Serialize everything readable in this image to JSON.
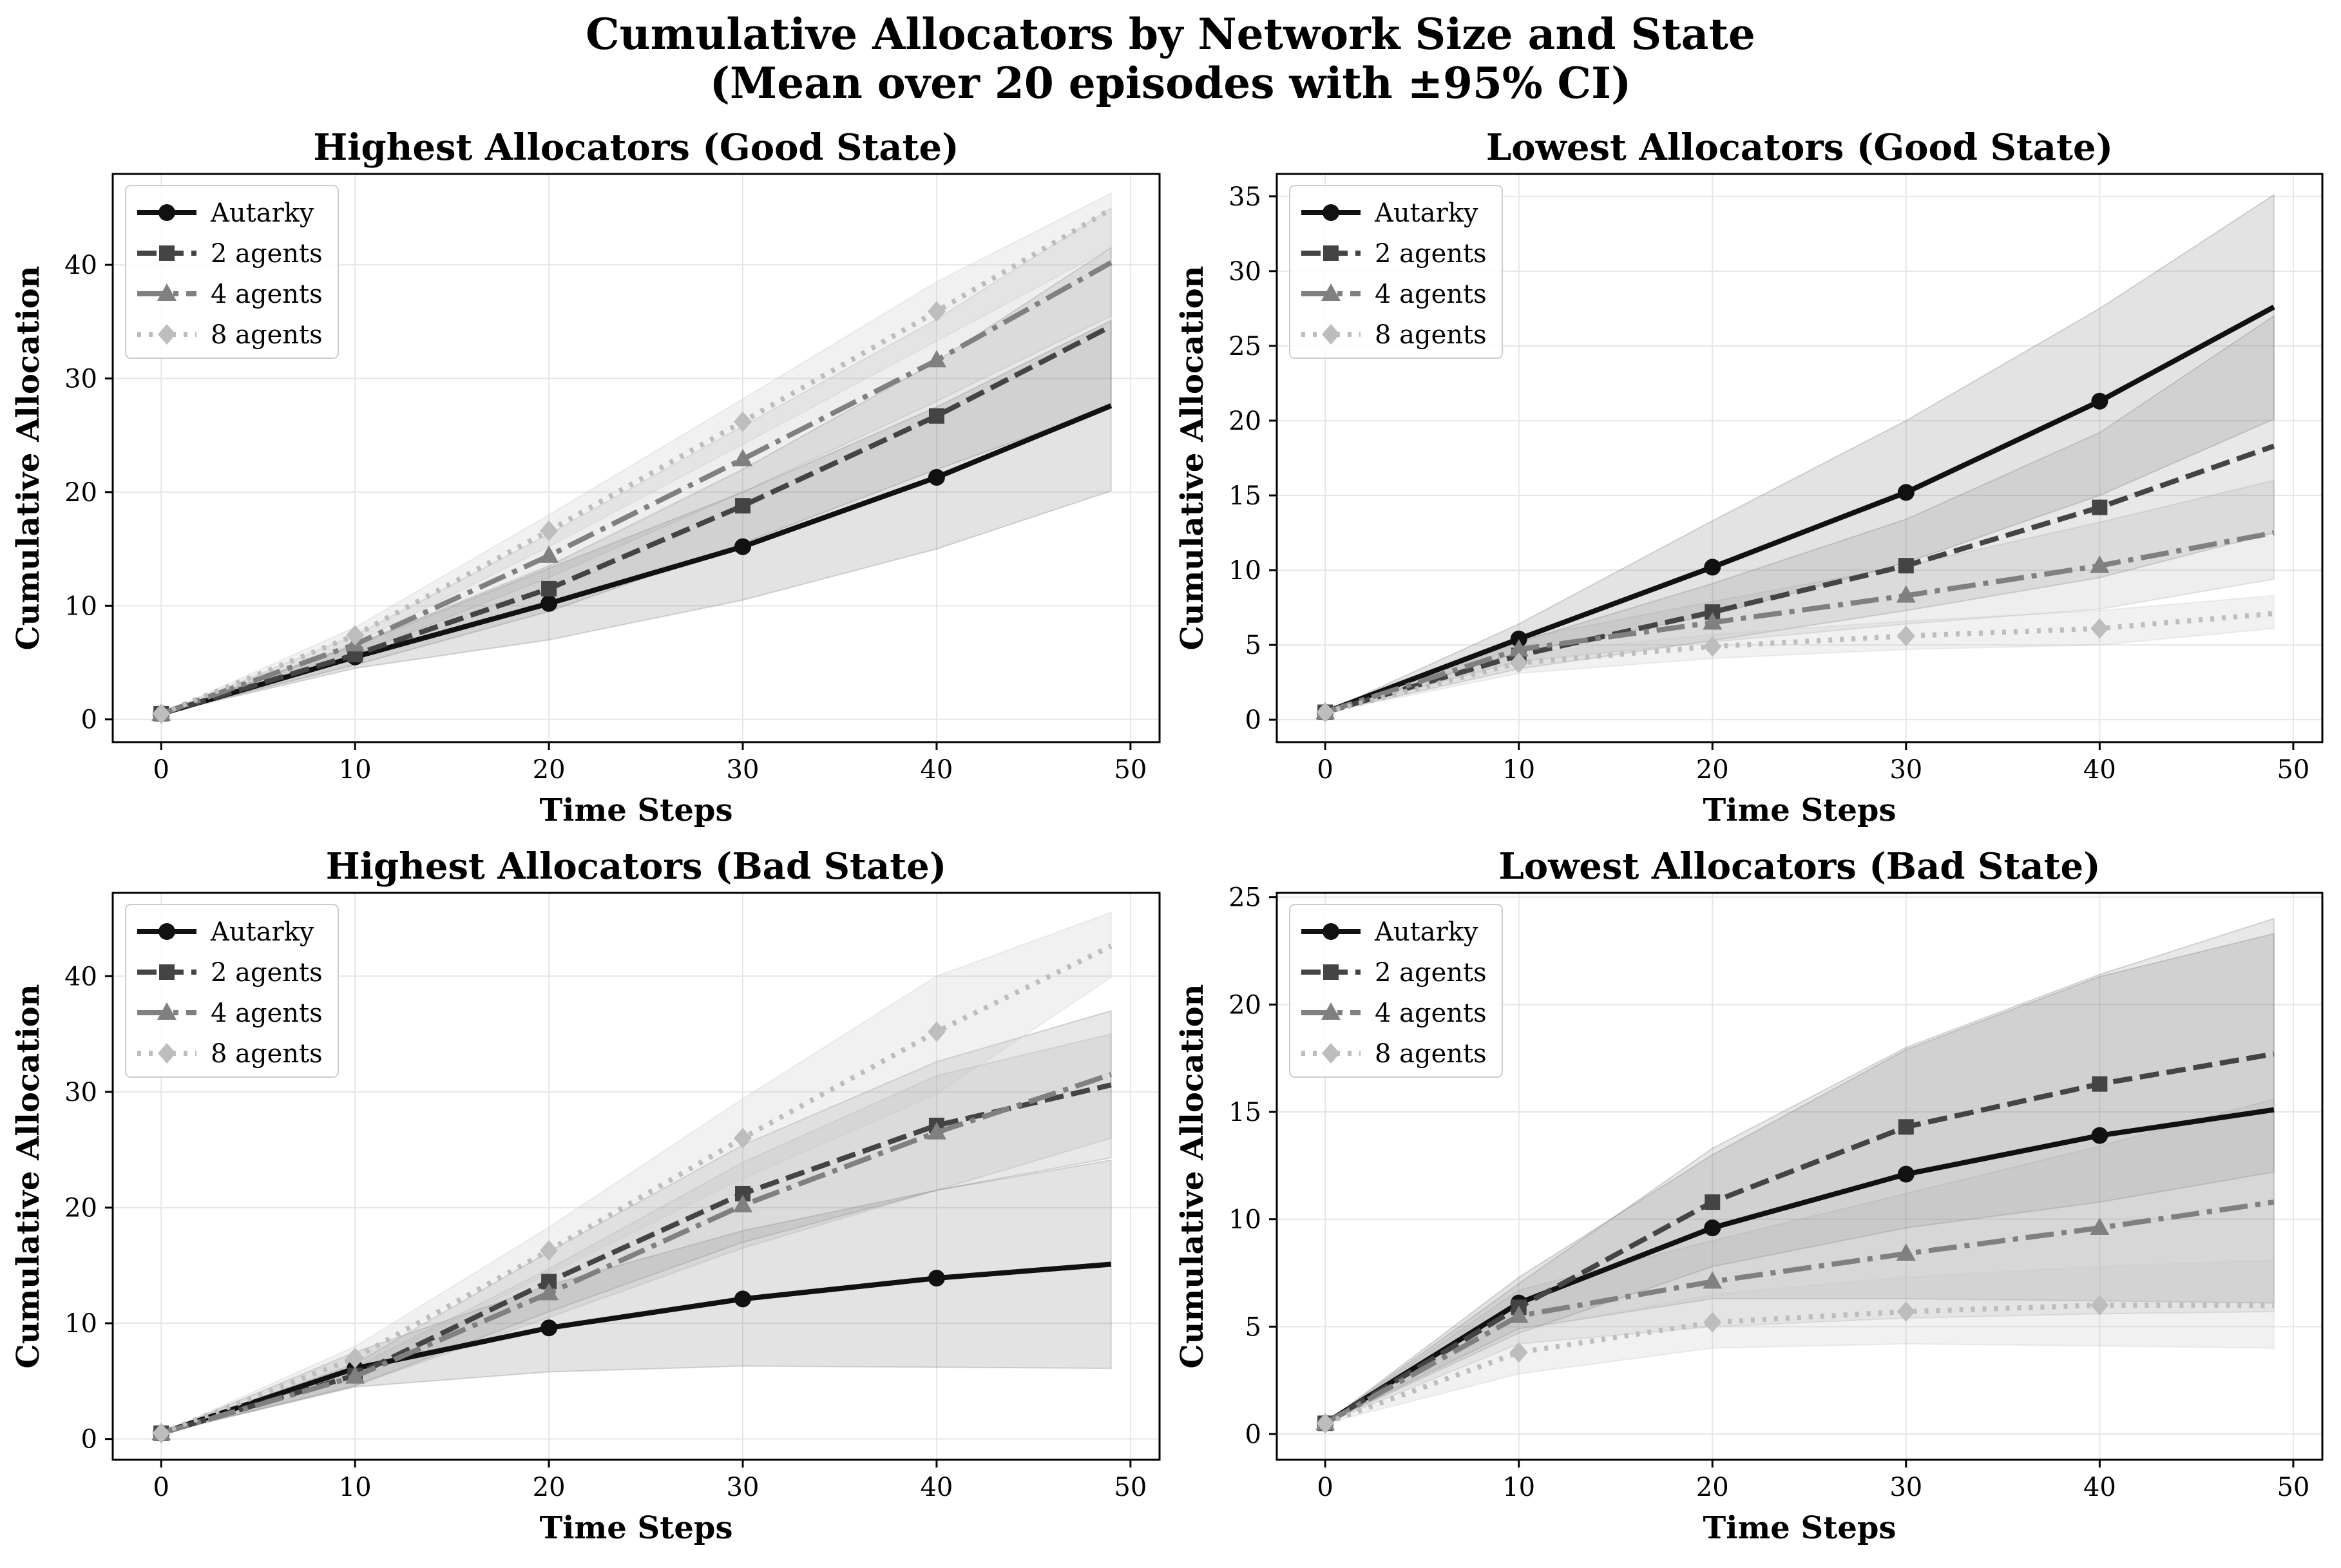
{
  "figure": {
    "title_line1": "Cumulative Allocators by Network Size and State",
    "title_line2": "(Mean over 20 episodes with ±95% CI)"
  },
  "chart_data": [
    {
      "type": "line",
      "title": "Highest Allocators (Good State)",
      "xlabel": "Time Steps",
      "ylabel": "Cumulative Allocation",
      "xlim": [
        -2.5,
        51.5
      ],
      "ylim": [
        -2,
        48
      ],
      "xticks": [
        0,
        10,
        20,
        30,
        40,
        50
      ],
      "yticks": [
        0,
        10,
        20,
        30,
        40
      ],
      "grid": true,
      "legend_position": "upper-left",
      "series": [
        {
          "name": "Autarky",
          "style": "solid",
          "marker": "circle",
          "color": "#111111",
          "x": [
            0,
            10,
            20,
            30,
            40,
            49
          ],
          "y": [
            0.5,
            5.5,
            10.2,
            15.2,
            21.3,
            27.6
          ],
          "ci_low": [
            0.5,
            4.5,
            7.0,
            10.5,
            15.0,
            20.1
          ],
          "ci_high": [
            0.5,
            6.5,
            13.3,
            20.0,
            27.5,
            35.1
          ]
        },
        {
          "name": "2 agents",
          "style": "dashed",
          "marker": "square",
          "color": "#444444",
          "x": [
            0,
            10,
            20,
            30,
            40,
            49
          ],
          "y": [
            0.5,
            5.7,
            11.5,
            18.8,
            26.7,
            34.6
          ],
          "ci_low": [
            0.5,
            4.8,
            9.5,
            15.5,
            22.0,
            27.5
          ],
          "ci_high": [
            0.5,
            6.6,
            13.5,
            22.0,
            31.5,
            41.5
          ]
        },
        {
          "name": "4 agents",
          "style": "dashdot",
          "marker": "triangle",
          "color": "#808080",
          "x": [
            0,
            10,
            20,
            30,
            40,
            49
          ],
          "y": [
            0.5,
            6.6,
            14.4,
            22.9,
            31.6,
            40.2
          ],
          "ci_low": [
            0.5,
            5.7,
            12.5,
            20.0,
            28.0,
            35.5
          ],
          "ci_high": [
            0.5,
            7.4,
            16.3,
            25.8,
            35.2,
            45.0
          ]
        },
        {
          "name": "8 agents",
          "style": "dotted",
          "marker": "diamond",
          "color": "#bdbdbd",
          "x": [
            0,
            10,
            20,
            30,
            40,
            49
          ],
          "y": [
            0.5,
            7.4,
            16.6,
            26.2,
            35.9,
            44.9
          ],
          "ci_low": [
            0.5,
            6.7,
            15.2,
            24.2,
            33.3,
            41.5
          ],
          "ci_high": [
            0.5,
            8.1,
            18.0,
            28.2,
            38.5,
            46.3
          ]
        }
      ]
    },
    {
      "type": "line",
      "title": "Lowest Allocators (Good State)",
      "xlabel": "Time Steps",
      "ylabel": "Cumulative Allocation",
      "xlim": [
        -2.5,
        51.5
      ],
      "ylim": [
        -1.5,
        36.5
      ],
      "xticks": [
        0,
        10,
        20,
        30,
        40,
        50
      ],
      "yticks": [
        0,
        5,
        10,
        15,
        20,
        25,
        30,
        35
      ],
      "grid": true,
      "legend_position": "upper-left",
      "series": [
        {
          "name": "Autarky",
          "style": "solid",
          "marker": "circle",
          "color": "#111111",
          "x": [
            0,
            10,
            20,
            30,
            40,
            49
          ],
          "y": [
            0.5,
            5.4,
            10.2,
            15.2,
            21.3,
            27.6
          ],
          "ci_low": [
            0.5,
            4.5,
            7.0,
            10.5,
            15.0,
            20.1
          ],
          "ci_high": [
            0.5,
            6.4,
            13.3,
            20.0,
            27.5,
            35.1
          ]
        },
        {
          "name": "2 agents",
          "style": "dashed",
          "marker": "square",
          "color": "#444444",
          "x": [
            0,
            10,
            20,
            30,
            40,
            49
          ],
          "y": [
            0.5,
            4.3,
            7.2,
            10.3,
            14.2,
            18.3
          ],
          "ci_low": [
            0.5,
            3.4,
            5.3,
            7.3,
            9.5,
            12.5
          ],
          "ci_high": [
            0.5,
            5.2,
            9.1,
            13.4,
            19.2,
            27.0
          ]
        },
        {
          "name": "4 agents",
          "style": "dashdot",
          "marker": "triangle",
          "color": "#808080",
          "x": [
            0,
            10,
            20,
            30,
            40,
            49
          ],
          "y": [
            0.5,
            4.7,
            6.5,
            8.3,
            10.3,
            12.5
          ],
          "ci_low": [
            0.5,
            3.9,
            5.2,
            6.4,
            7.4,
            9.4
          ],
          "ci_high": [
            0.5,
            5.4,
            7.9,
            10.3,
            13.2,
            16.0
          ]
        },
        {
          "name": "8 agents",
          "style": "dotted",
          "marker": "diamond",
          "color": "#bdbdbd",
          "x": [
            0,
            10,
            20,
            30,
            40,
            49
          ],
          "y": [
            0.5,
            3.8,
            4.9,
            5.6,
            6.1,
            7.1
          ],
          "ci_low": [
            0.5,
            3.1,
            4.1,
            4.7,
            5.0,
            6.1
          ],
          "ci_high": [
            0.5,
            4.4,
            5.7,
            6.6,
            7.3,
            8.3
          ]
        }
      ]
    },
    {
      "type": "line",
      "title": "Highest Allocators (Bad State)",
      "xlabel": "Time Steps",
      "ylabel": "Cumulative Allocation",
      "xlim": [
        -2.5,
        51.5
      ],
      "ylim": [
        -1.8,
        47.2
      ],
      "xticks": [
        0,
        10,
        20,
        30,
        40,
        50
      ],
      "yticks": [
        0,
        10,
        20,
        30,
        40
      ],
      "grid": true,
      "legend_position": "upper-left",
      "series": [
        {
          "name": "Autarky",
          "style": "solid",
          "marker": "circle",
          "color": "#111111",
          "x": [
            0,
            10,
            20,
            30,
            40,
            49
          ],
          "y": [
            0.5,
            6.1,
            9.6,
            12.1,
            13.9,
            15.1
          ],
          "ci_low": [
            0.5,
            4.5,
            5.8,
            6.3,
            6.2,
            6.1
          ],
          "ci_high": [
            0.5,
            7.5,
            13.3,
            18.0,
            21.5,
            24.1
          ]
        },
        {
          "name": "2 agents",
          "style": "dashed",
          "marker": "square",
          "color": "#444444",
          "x": [
            0,
            10,
            20,
            30,
            40,
            49
          ],
          "y": [
            0.5,
            5.5,
            13.6,
            21.2,
            27.1,
            30.6
          ],
          "ci_low": [
            0.5,
            4.6,
            11.0,
            17.0,
            21.5,
            24.3
          ],
          "ci_high": [
            0.5,
            6.5,
            16.2,
            25.4,
            32.6,
            37.0
          ]
        },
        {
          "name": "4 agents",
          "style": "dashdot",
          "marker": "triangle",
          "color": "#808080",
          "x": [
            0,
            10,
            20,
            30,
            40,
            49
          ],
          "y": [
            0.5,
            5.4,
            12.6,
            20.2,
            26.5,
            31.5
          ],
          "ci_low": [
            0.5,
            4.6,
            10.5,
            16.5,
            21.5,
            26.0
          ],
          "ci_high": [
            0.5,
            6.2,
            14.7,
            23.9,
            31.4,
            35.0
          ]
        },
        {
          "name": "8 agents",
          "style": "dotted",
          "marker": "diamond",
          "color": "#bdbdbd",
          "x": [
            0,
            10,
            20,
            30,
            40,
            49
          ],
          "y": [
            0.5,
            7.0,
            16.3,
            26.0,
            35.2,
            42.6
          ],
          "ci_low": [
            0.5,
            6.0,
            14.3,
            22.5,
            29.8,
            39.9
          ],
          "ci_high": [
            0.5,
            8.0,
            18.3,
            29.4,
            40.0,
            45.5
          ]
        }
      ]
    },
    {
      "type": "line",
      "title": "Lowest Allocators (Bad State)",
      "xlabel": "Time Steps",
      "ylabel": "Cumulative Allocation",
      "xlim": [
        -2.5,
        51.5
      ],
      "ylim": [
        -1.2,
        25.2
      ],
      "xticks": [
        0,
        10,
        20,
        30,
        40,
        50
      ],
      "yticks": [
        0,
        5,
        10,
        15,
        20,
        25
      ],
      "grid": true,
      "legend_position": "upper-left",
      "series": [
        {
          "name": "Autarky",
          "style": "solid",
          "marker": "circle",
          "color": "#111111",
          "x": [
            0,
            10,
            20,
            30,
            40,
            49
          ],
          "y": [
            0.5,
            6.1,
            9.6,
            12.1,
            13.9,
            15.1
          ],
          "ci_low": [
            0.5,
            4.9,
            6.3,
            6.3,
            6.2,
            6.1
          ],
          "ci_high": [
            0.5,
            7.3,
            13.0,
            17.9,
            21.3,
            23.3
          ]
        },
        {
          "name": "2 agents",
          "style": "dashed",
          "marker": "square",
          "color": "#444444",
          "x": [
            0,
            10,
            20,
            30,
            40,
            49
          ],
          "y": [
            0.5,
            5.9,
            10.8,
            14.3,
            16.3,
            17.7
          ],
          "ci_low": [
            0.5,
            4.7,
            7.8,
            9.6,
            10.8,
            12.2
          ],
          "ci_high": [
            0.5,
            7.0,
            13.3,
            18.0,
            21.4,
            24.0
          ]
        },
        {
          "name": "4 agents",
          "style": "dashdot",
          "marker": "triangle",
          "color": "#808080",
          "x": [
            0,
            10,
            20,
            30,
            40,
            49
          ],
          "y": [
            0.5,
            5.5,
            7.1,
            8.4,
            9.6,
            10.8
          ],
          "ci_low": [
            0.5,
            4.2,
            5.0,
            5.4,
            5.6,
            5.7
          ],
          "ci_high": [
            0.5,
            6.7,
            9.0,
            11.2,
            13.4,
            15.6
          ]
        },
        {
          "name": "8 agents",
          "style": "dotted",
          "marker": "diamond",
          "color": "#bdbdbd",
          "x": [
            0,
            10,
            20,
            30,
            40,
            49
          ],
          "y": [
            0.5,
            3.8,
            5.2,
            5.7,
            6.0,
            6.0
          ],
          "ci_low": [
            0.5,
            2.8,
            4.0,
            4.2,
            4.1,
            4.0
          ],
          "ci_high": [
            0.5,
            4.8,
            6.5,
            7.3,
            7.8,
            8.1
          ]
        }
      ]
    }
  ]
}
